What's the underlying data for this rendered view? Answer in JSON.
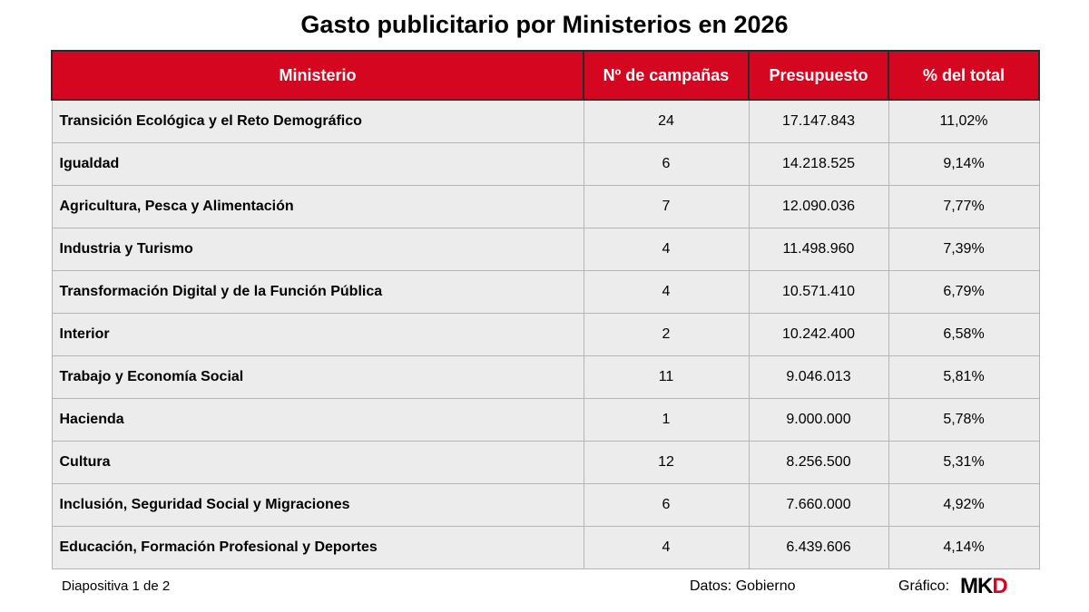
{
  "title": "Gasto publicitario por Ministerios en 2026",
  "footer": {
    "slide": "Diapositiva 1 de 2",
    "source": "Datos: Gobierno",
    "credit_label": "Gráfico:",
    "logo_part1": "MK",
    "logo_part2": "D"
  },
  "colors": {
    "header_bg": "#d5061f",
    "row_bg": "#ececec"
  },
  "chart_data": {
    "type": "table",
    "columns": [
      "Ministerio",
      "Nº de campañas",
      "Presupuesto",
      "% del total"
    ],
    "rows": [
      [
        "Transición  Ecológica y el Reto Demográfico",
        "24",
        "17.147.843",
        "11,02%"
      ],
      [
        "Igualdad",
        "6",
        "14.218.525",
        "9,14%"
      ],
      [
        "Agricultura, Pesca y Alimentación",
        "7",
        "12.090.036",
        "7,77%"
      ],
      [
        "Industria y Turismo",
        "4",
        "11.498.960",
        "7,39%"
      ],
      [
        "Transformación Digital y de la Función  Pública",
        "4",
        "10.571.410",
        "6,79%"
      ],
      [
        "Interior",
        "2",
        "10.242.400",
        "6,58%"
      ],
      [
        "Trabajo y Economía Social",
        "11",
        "9.046.013",
        "5,81%"
      ],
      [
        "Hacienda",
        "1",
        "9.000.000",
        "5,78%"
      ],
      [
        "Cultura",
        "12",
        "8.256.500",
        "5,31%"
      ],
      [
        "Inclusión, Seguridad Social y Migraciones",
        "6",
        "7.660.000",
        "4,92%"
      ],
      [
        "Educación,  Formación Profesional y Deportes",
        "4",
        "6.439.606",
        "4,14%"
      ]
    ]
  }
}
